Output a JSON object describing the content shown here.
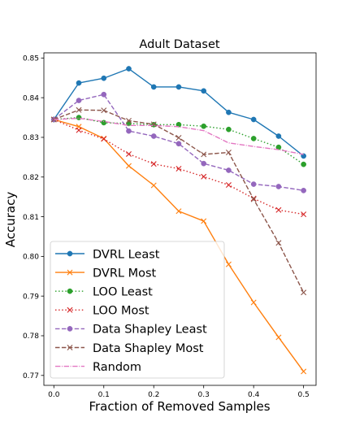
{
  "chart_data": {
    "type": "line",
    "title": "Adult Dataset",
    "xlabel": "Fraction of Removed Samples",
    "ylabel": "Accuracy",
    "xlim": [
      -0.02,
      0.525
    ],
    "ylim": [
      0.7675,
      0.8513
    ],
    "x_ticks": [
      0.0,
      0.1,
      0.2,
      0.3,
      0.4,
      0.5
    ],
    "x_tick_labels": [
      "0.0",
      "0.1",
      "0.2",
      "0.3",
      "0.4",
      "0.5"
    ],
    "y_ticks": [
      0.77,
      0.78,
      0.79,
      0.8,
      0.81,
      0.82,
      0.83,
      0.84,
      0.85
    ],
    "y_tick_labels": [
      "0.77",
      "0.78",
      "0.79",
      "0.80",
      "0.81",
      "0.82",
      "0.83",
      "0.84",
      "0.85"
    ],
    "grid": false,
    "legend_position": "lower-left",
    "x": [
      0.0,
      0.05,
      0.1,
      0.15,
      0.2,
      0.25,
      0.3,
      0.35,
      0.4,
      0.45,
      0.5
    ],
    "series": [
      {
        "name": "DVRL Least",
        "color": "#1f77b4",
        "dash": "solid",
        "marker": "circle",
        "values": [
          0.8345,
          0.8437,
          0.8449,
          0.8473,
          0.8427,
          0.8427,
          0.8417,
          0.8363,
          0.8345,
          0.8303,
          0.8253
        ]
      },
      {
        "name": "DVRL Most",
        "color": "#ff7f0e",
        "dash": "solid",
        "marker": "x",
        "values": [
          0.8345,
          0.8327,
          0.8297,
          0.8228,
          0.8179,
          0.8114,
          0.8089,
          0.798,
          0.7884,
          0.7796,
          0.771
        ]
      },
      {
        "name": "LOO Least",
        "color": "#2ca02c",
        "dash": "dotted",
        "marker": "circle",
        "values": [
          0.8345,
          0.835,
          0.8337,
          0.8335,
          0.8332,
          0.8332,
          0.8328,
          0.832,
          0.8297,
          0.8275,
          0.8232
        ]
      },
      {
        "name": "LOO Most",
        "color": "#d62728",
        "dash": "dotted",
        "marker": "x",
        "values": [
          0.8345,
          0.8318,
          0.8296,
          0.8258,
          0.8233,
          0.8221,
          0.8201,
          0.818,
          0.8146,
          0.8117,
          0.8106
        ]
      },
      {
        "name": "Data Shapley Least",
        "color": "#9467bd",
        "dash": "dashed",
        "marker": "circle",
        "values": [
          0.8345,
          0.8393,
          0.8408,
          0.8316,
          0.8303,
          0.8284,
          0.8234,
          0.8217,
          0.8182,
          0.8176,
          0.8166
        ]
      },
      {
        "name": "Data Shapley Most",
        "color": "#8c564b",
        "dash": "dashed",
        "marker": "x",
        "values": [
          0.8345,
          0.8369,
          0.8368,
          0.8342,
          0.8333,
          0.8299,
          0.8257,
          0.8262,
          0.8144,
          0.8034,
          0.7909
        ]
      },
      {
        "name": "Random",
        "color": "#e377c2",
        "dash": "dashdot",
        "marker": "none",
        "values": [
          0.8345,
          0.8348,
          0.834,
          0.833,
          0.833,
          0.8327,
          0.8317,
          0.8286,
          0.8277,
          0.8269,
          0.8257
        ]
      }
    ]
  }
}
